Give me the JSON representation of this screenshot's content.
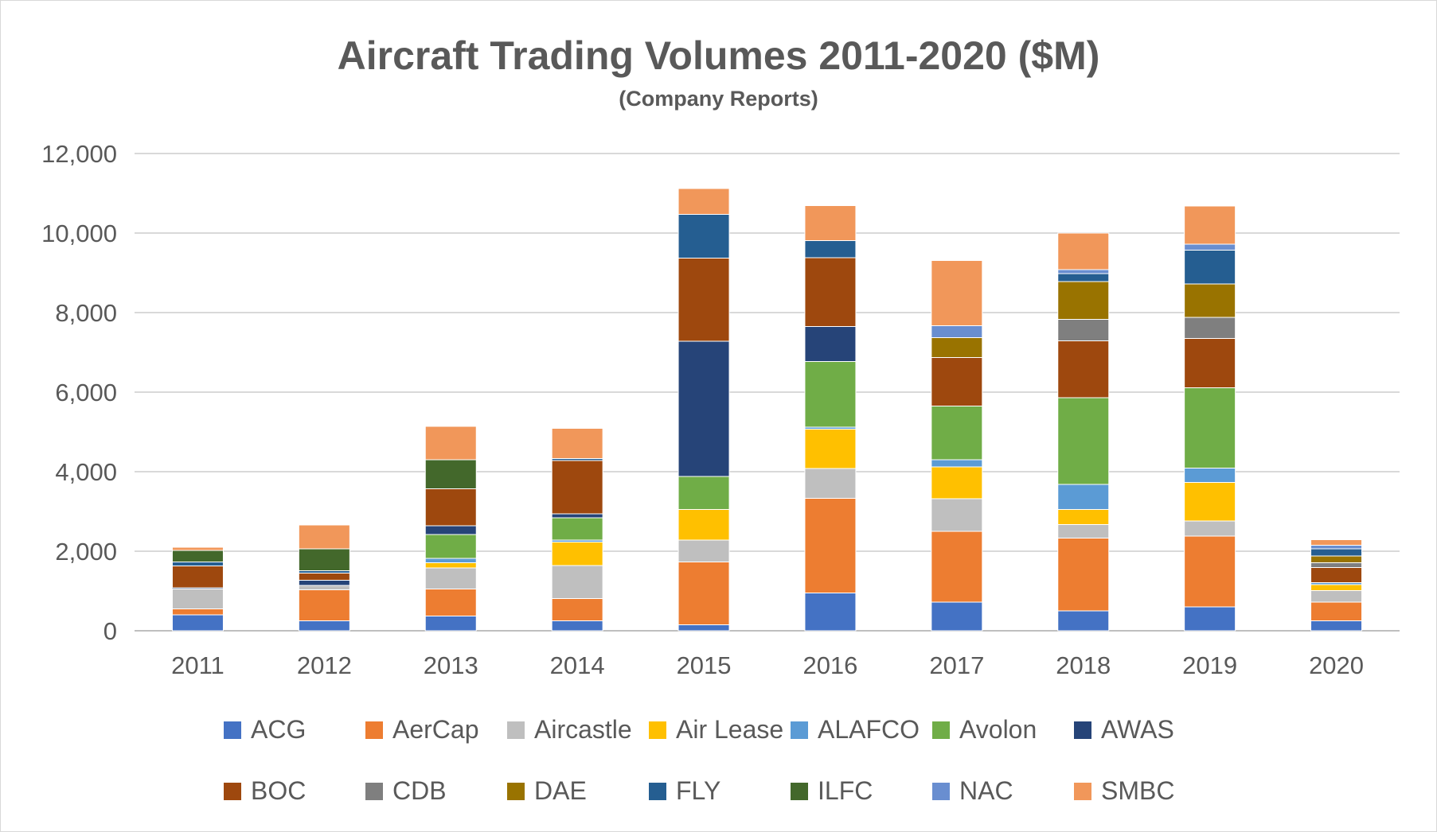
{
  "chart_data": {
    "type": "bar",
    "stacked": true,
    "title": "Aircraft Trading Volumes 2011-2020 ($M)",
    "subtitle": "(Company Reports)",
    "xlabel": "",
    "ylabel": "",
    "ylim": [
      0,
      12000
    ],
    "yticks": [
      0,
      2000,
      4000,
      6000,
      8000,
      10000,
      12000
    ],
    "ytick_labels": [
      "0",
      "2,000",
      "4,000",
      "6,000",
      "8,000",
      "10,000",
      "12,000"
    ],
    "grid": true,
    "legend_position": "bottom",
    "categories": [
      "2011",
      "2012",
      "2013",
      "2014",
      "2015",
      "2016",
      "2017",
      "2018",
      "2019",
      "2020"
    ],
    "series": [
      {
        "name": "ACG",
        "color": "#4472c4",
        "values": [
          400,
          250,
          370,
          250,
          150,
          950,
          720,
          500,
          600,
          250
        ]
      },
      {
        "name": "AerCap",
        "color": "#ed7d31",
        "values": [
          150,
          780,
          680,
          560,
          1580,
          2380,
          1780,
          1830,
          1780,
          470
        ]
      },
      {
        "name": "Aircastle",
        "color": "#bfbfbf",
        "values": [
          500,
          110,
          530,
          830,
          550,
          750,
          820,
          340,
          380,
          290
        ]
      },
      {
        "name": "Air Lease",
        "color": "#ffc000",
        "values": [
          0,
          0,
          130,
          590,
          770,
          990,
          800,
          380,
          970,
          150
        ]
      },
      {
        "name": "ALAFCO",
        "color": "#5b9bd5",
        "values": [
          0,
          0,
          110,
          50,
          0,
          50,
          180,
          630,
          360,
          50
        ]
      },
      {
        "name": "Avolon",
        "color": "#70ad47",
        "values": [
          0,
          0,
          600,
          560,
          830,
          1650,
          1350,
          2180,
          2020,
          0
        ]
      },
      {
        "name": "AWAS",
        "color": "#264478",
        "values": [
          30,
          130,
          220,
          100,
          3400,
          880,
          0,
          0,
          0,
          0
        ]
      },
      {
        "name": "BOC",
        "color": "#9e480e",
        "values": [
          550,
          180,
          930,
          1340,
          2090,
          1730,
          1220,
          1430,
          1240,
          380
        ]
      },
      {
        "name": "CDB",
        "color": "#7f7f7f",
        "values": [
          0,
          0,
          0,
          0,
          0,
          0,
          0,
          540,
          530,
          120
        ]
      },
      {
        "name": "DAE",
        "color": "#997300",
        "values": [
          0,
          0,
          0,
          0,
          0,
          0,
          500,
          950,
          840,
          170
        ]
      },
      {
        "name": "FLY",
        "color": "#255e91",
        "values": [
          100,
          60,
          0,
          50,
          1100,
          430,
          0,
          200,
          850,
          180
        ]
      },
      {
        "name": "ILFC",
        "color": "#43682b",
        "values": [
          290,
          550,
          730,
          0,
          0,
          0,
          0,
          0,
          0,
          0
        ]
      },
      {
        "name": "NAC",
        "color": "#698ed0",
        "values": [
          0,
          0,
          0,
          0,
          0,
          0,
          300,
          100,
          150,
          90
        ]
      },
      {
        "name": "SMBC",
        "color": "#f1975a",
        "values": [
          80,
          600,
          840,
          760,
          650,
          880,
          1640,
          920,
          960,
          140
        ]
      }
    ]
  }
}
